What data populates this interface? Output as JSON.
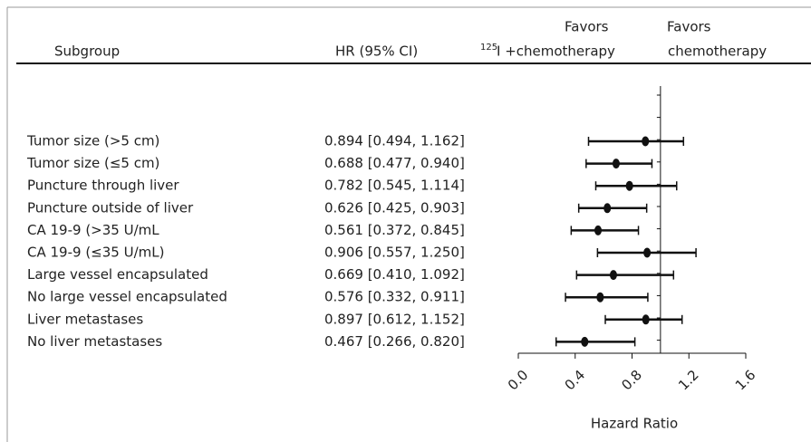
{
  "chart_data": {
    "type": "forest",
    "headers": {
      "subgroup": "Subgroup",
      "hr": "HR (95% CI)",
      "favors_left": "Favors",
      "favors_left_sup": "125",
      "favors_left_text": "I +chemotherapy",
      "favors_right": "Favors",
      "favors_right_text": "chemotherapy"
    },
    "categories": [
      "Tumor size (>5 cm)",
      "Tumor size (≤5 cm)",
      "Puncture through liver",
      "Puncture outside of liver",
      "CA 19-9 (>35 U/mL",
      "CA 19-9 (≤35 U/mL)",
      "Large vessel encapsulated",
      "No large vessel encapsulated",
      "Liver metastases",
      "No liver metastases"
    ],
    "values": [
      0.894,
      0.688,
      0.782,
      0.626,
      0.561,
      0.906,
      0.669,
      0.576,
      0.897,
      0.467
    ],
    "lower": [
      0.494,
      0.477,
      0.545,
      0.425,
      0.372,
      0.557,
      0.41,
      0.332,
      0.612,
      0.266
    ],
    "upper": [
      1.162,
      0.94,
      1.114,
      0.903,
      0.845,
      1.25,
      1.092,
      0.911,
      1.152,
      0.82
    ],
    "value_labels": [
      "0.894 [0.494, 1.162]",
      "0.688 [0.477, 0.940]",
      "0.782 [0.545, 1.114]",
      "0.626 [0.425, 0.903]",
      "0.561 [0.372, 0.845]",
      "0.906 [0.557, 1.250]",
      "0.669 [0.410, 1.092]",
      "0.576 [0.332, 0.911]",
      "0.897 [0.612, 1.152]",
      "0.467 [0.266, 0.820]"
    ],
    "color": "#111111",
    "reference": 1,
    "xlim": [
      0,
      1.6
    ],
    "xticks": [
      {
        "value": 0,
        "label": "0.0"
      },
      0.4,
      0.8,
      1.2,
      1.6
    ],
    "xlabel": "Hazard Ratio"
  }
}
